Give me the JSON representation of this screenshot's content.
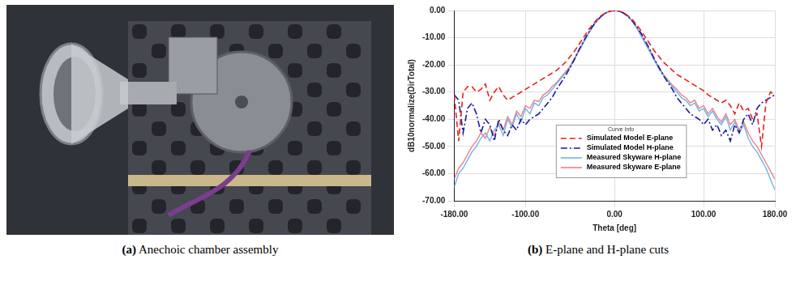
{
  "image_panel": {
    "caption": "(a) Anechoic chamber assembly"
  },
  "chart_data": {
    "type": "line",
    "caption": "(b) E-plane and H-plane cuts",
    "x_label": "Theta [deg]",
    "y_label": "dB10normalize(DirTotal)",
    "legend_title": "Curve Info",
    "legend": "lower center",
    "grid": true,
    "x": [
      -180,
      -175,
      -170,
      -165,
      -160,
      -155,
      -150,
      -145,
      -140,
      -135,
      -130,
      -125,
      -120,
      -115,
      -110,
      -105,
      -100,
      -95,
      -90,
      -85,
      -80,
      -75,
      -70,
      -65,
      -60,
      -55,
      -50,
      -45,
      -40,
      -35,
      -30,
      -25,
      -20,
      -15,
      -10,
      -5,
      0,
      5,
      10,
      15,
      20,
      25,
      30,
      35,
      40,
      45,
      50,
      55,
      60,
      65,
      70,
      75,
      80,
      85,
      90,
      95,
      100,
      105,
      110,
      115,
      120,
      125,
      130,
      135,
      140,
      145,
      150,
      155,
      160,
      165,
      170,
      175,
      180
    ],
    "xlim": [
      -180,
      180
    ],
    "xticks": [
      {
        "value": -180,
        "label": "-180.00"
      },
      {
        "value": -100,
        "label": "-100.00"
      },
      {
        "value": 0,
        "label": "0.00"
      },
      {
        "value": 100,
        "label": "100.00"
      },
      {
        "value": 180,
        "label": "180.00"
      }
    ],
    "ylim": [
      -70,
      0
    ],
    "yticks": [
      {
        "value": -70,
        "label": "-70.00"
      },
      {
        "value": -60,
        "label": "-60.00"
      },
      {
        "value": -50,
        "label": "-50.00"
      },
      {
        "value": -40,
        "label": "-40.00"
      },
      {
        "value": -30,
        "label": "-30.00"
      },
      {
        "value": -20,
        "label": "-20.00"
      },
      {
        "value": -10,
        "label": "-10.00"
      },
      {
        "value": 0,
        "label": "0.00"
      }
    ],
    "series": [
      {
        "name": "Simulated Model E-plane",
        "color": "#e8211f",
        "line_style": "dashed",
        "values": [
          -31,
          -48,
          -30,
          -28,
          -28,
          -30,
          -29,
          -27,
          -33,
          -30,
          -28,
          -31,
          -33,
          -32,
          -31,
          -30,
          -29,
          -28,
          -27,
          -26,
          -25,
          -24,
          -23,
          -22,
          -20.5,
          -19,
          -17,
          -15,
          -12.5,
          -10,
          -7.5,
          -5.3,
          -3.4,
          -1.9,
          -0.8,
          -0.2,
          0,
          -0.2,
          -0.8,
          -1.9,
          -3.4,
          -5.3,
          -7.5,
          -10,
          -12.5,
          -15,
          -17,
          -19,
          -20.5,
          -22,
          -23.5,
          -24.5,
          -25.5,
          -26.5,
          -27.5,
          -28.5,
          -29.5,
          -31,
          -32,
          -33,
          -34,
          -33,
          -35,
          -38,
          -34,
          -37,
          -36,
          -40,
          -38,
          -50,
          -34,
          -30,
          -31
        ]
      },
      {
        "name": "Simulated Model H-plane",
        "color": "#1a1a9a",
        "line_style": "dashdot",
        "values": [
          -31,
          -33,
          -45,
          -36,
          -34,
          -38,
          -45,
          -40,
          -42,
          -48,
          -40,
          -44,
          -46,
          -42,
          -44,
          -40,
          -42,
          -40,
          -39,
          -38,
          -36,
          -34,
          -32,
          -29,
          -26.5,
          -24,
          -21,
          -18,
          -14.5,
          -11.5,
          -8.5,
          -6,
          -3.8,
          -2.1,
          -0.9,
          -0.2,
          0,
          -0.2,
          -0.9,
          -2.1,
          -3.8,
          -6,
          -8.5,
          -11.5,
          -14.5,
          -18,
          -21,
          -24,
          -26.5,
          -29,
          -32,
          -34,
          -36,
          -38,
          -39,
          -40,
          -42,
          -40,
          -44,
          -42,
          -46,
          -44,
          -48,
          -42,
          -45,
          -40,
          -38,
          -42,
          -36,
          -34,
          -33,
          -32,
          -31
        ]
      },
      {
        "name": "Measured Skyware H-plane",
        "color": "#6cb4ee",
        "line_style": "solid",
        "values": [
          -65,
          -60,
          -58,
          -55,
          -52,
          -50,
          -47,
          -45,
          -48,
          -44,
          -42,
          -46,
          -40,
          -43,
          -38,
          -41,
          -36,
          -38,
          -34,
          -35,
          -32,
          -31,
          -29,
          -27,
          -25,
          -23,
          -21,
          -18,
          -15,
          -12,
          -9,
          -6.3,
          -4,
          -2.2,
          -1,
          -0.2,
          0,
          -0.2,
          -1,
          -2.2,
          -4,
          -6.5,
          -9.5,
          -12.5,
          -15.5,
          -18.5,
          -21.5,
          -24,
          -26,
          -28,
          -30,
          -32,
          -33,
          -35,
          -34,
          -37,
          -36,
          -39,
          -37,
          -40,
          -42,
          -39,
          -44,
          -41,
          -45,
          -42,
          -47,
          -50,
          -52,
          -55,
          -58,
          -62,
          -66
        ]
      },
      {
        "name": "Measured Skyware E-plane",
        "color": "#f08080",
        "line_style": "solid",
        "values": [
          -62,
          -58,
          -56,
          -53,
          -50,
          -48,
          -45,
          -47,
          -43,
          -46,
          -41,
          -44,
          -39,
          -42,
          -37,
          -39,
          -35,
          -36,
          -33,
          -33.5,
          -31,
          -30,
          -28,
          -26.5,
          -24.5,
          -22.5,
          -20.5,
          -17.5,
          -14.5,
          -11.5,
          -8.8,
          -6,
          -3.8,
          -2.1,
          -0.9,
          -0.2,
          0,
          -0.2,
          -0.9,
          -2.1,
          -3.9,
          -6.2,
          -9,
          -12,
          -15,
          -18,
          -21,
          -23.5,
          -25.5,
          -27.5,
          -29,
          -31,
          -32,
          -34,
          -33,
          -36,
          -35,
          -38,
          -36,
          -39,
          -41,
          -38,
          -42,
          -40,
          -44,
          -41,
          -45,
          -48,
          -50,
          -53,
          -56,
          -59,
          -62
        ]
      }
    ]
  }
}
